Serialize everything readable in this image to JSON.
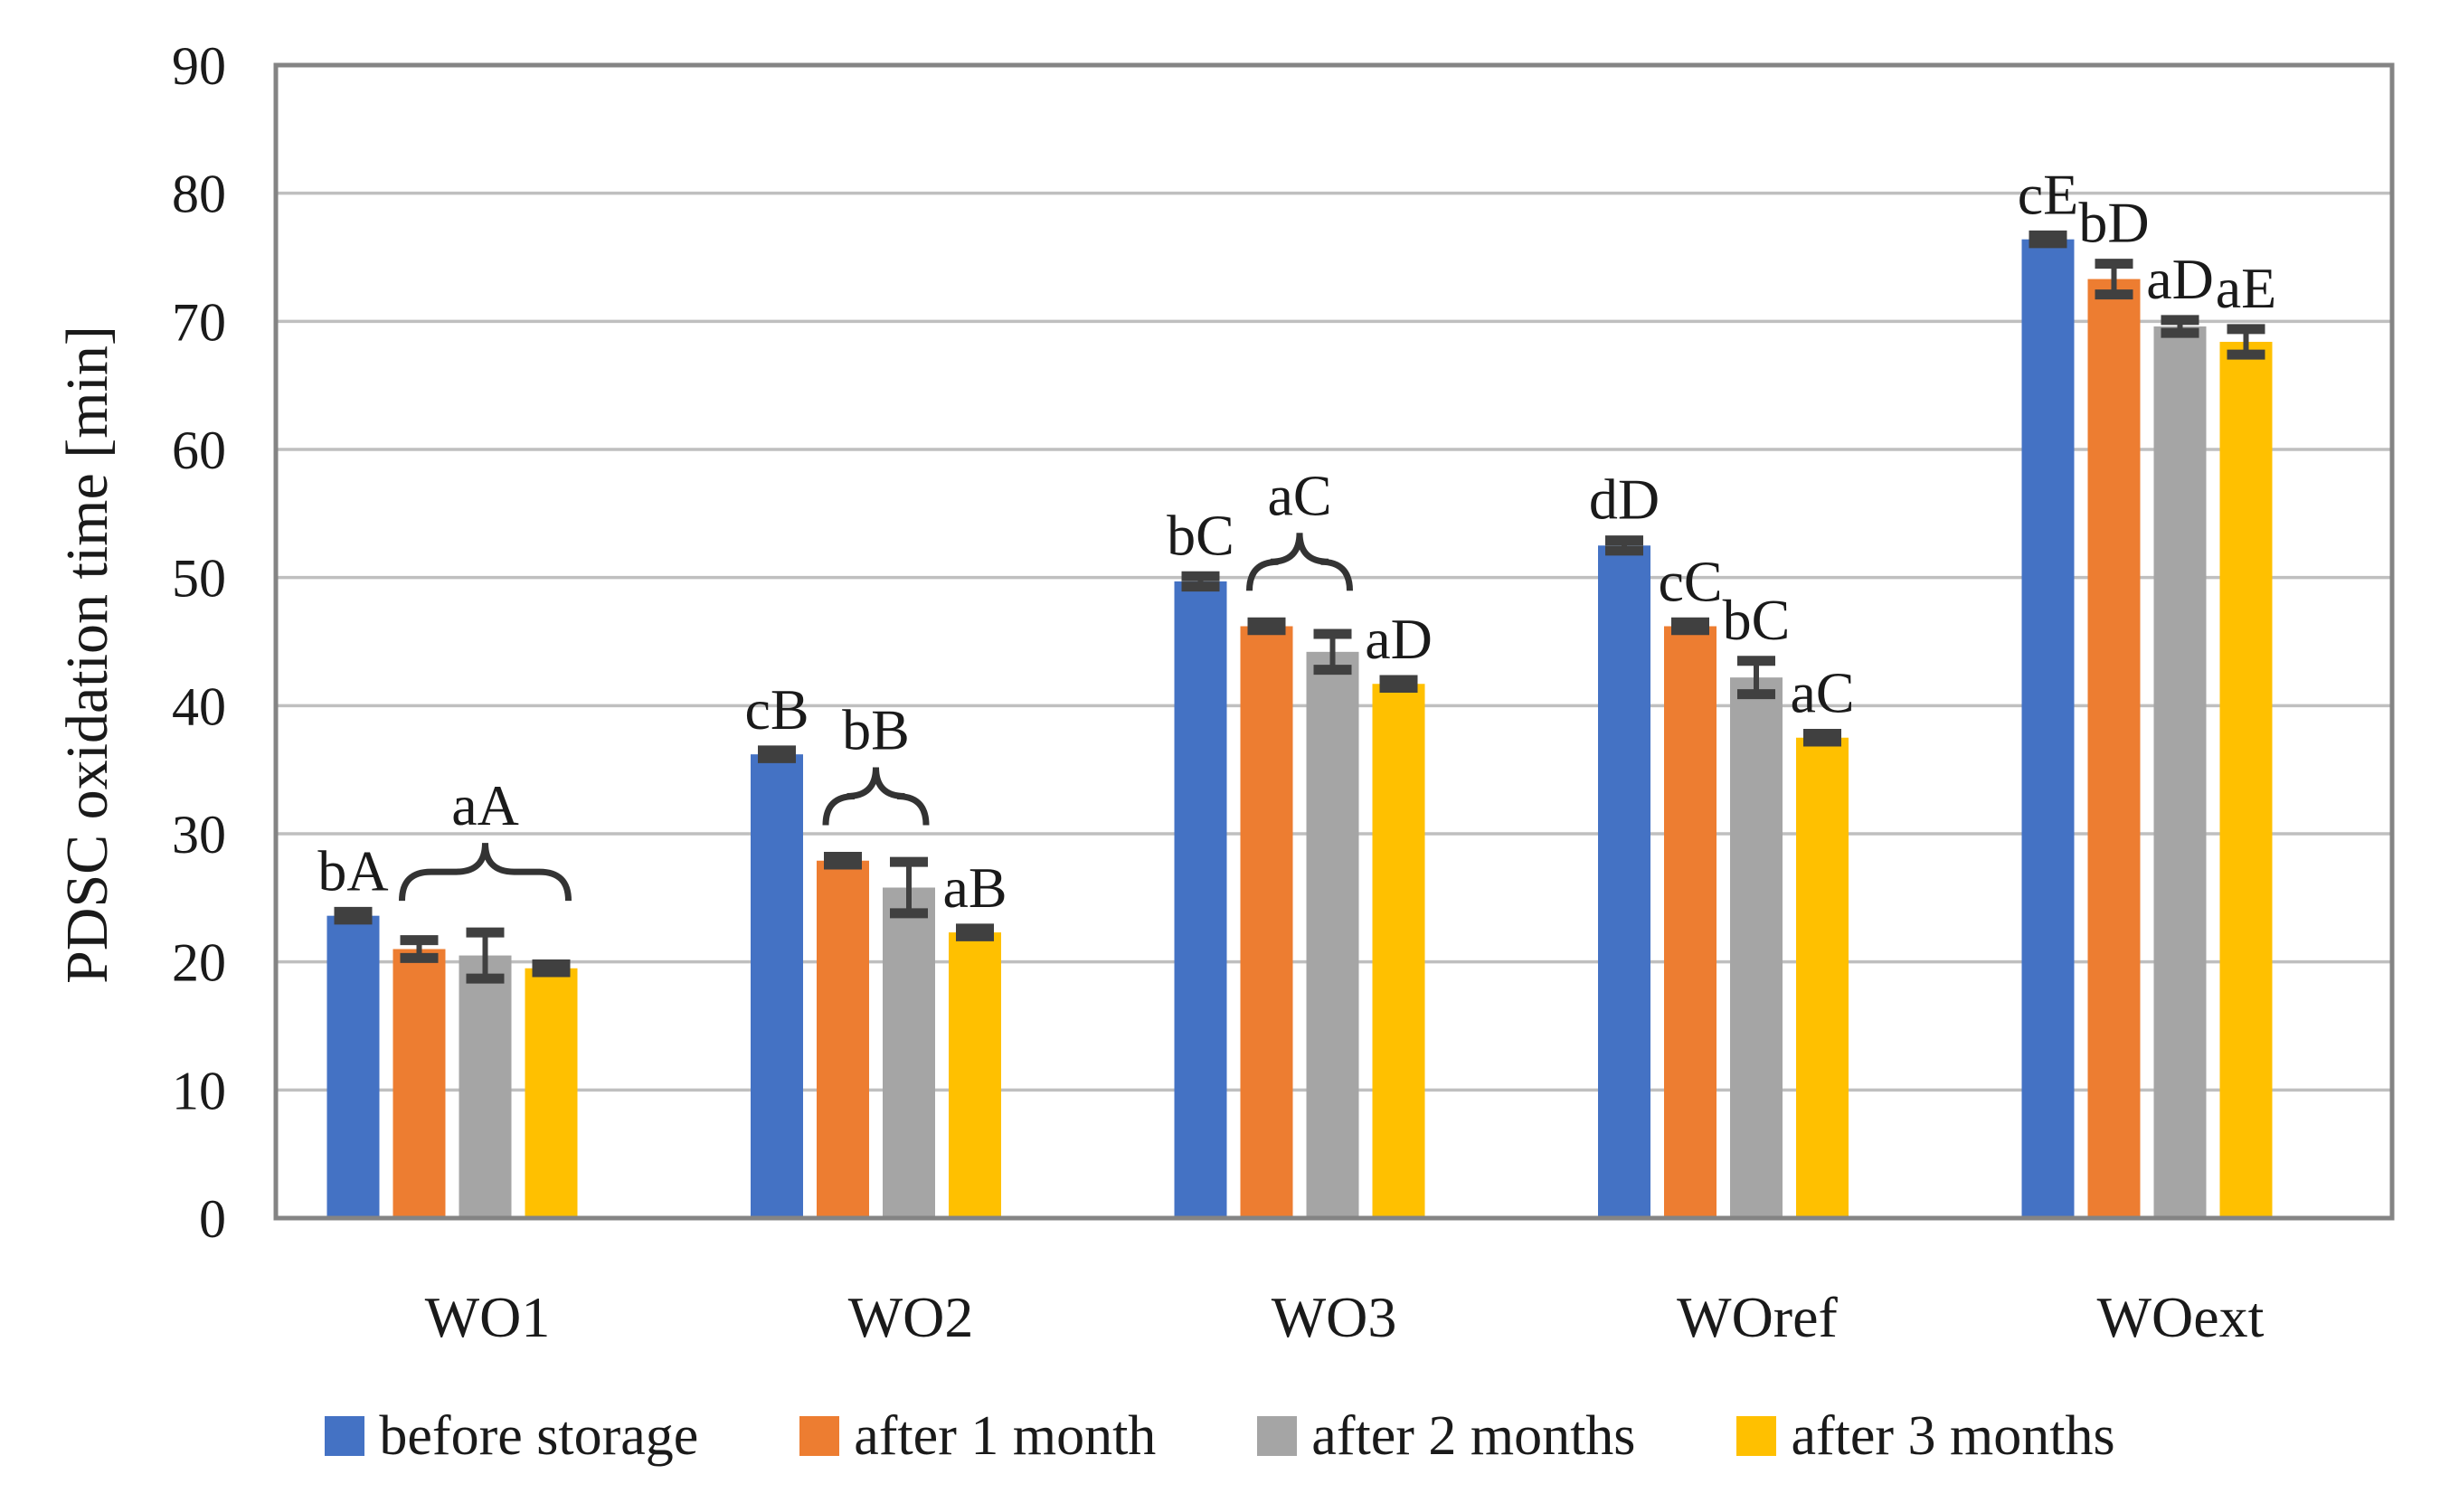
{
  "chart_data": {
    "type": "bar",
    "title": "",
    "xlabel": "",
    "ylabel": "PDSC oxidation time [min]",
    "ylim": [
      0,
      90
    ],
    "ytick_step": 10,
    "grid": true,
    "legend_position": "bottom",
    "categories": [
      "WO1",
      "WO2",
      "WO3",
      "WOref",
      "WOext"
    ],
    "series": [
      {
        "name": "before storage",
        "color": "#4472C4",
        "values": [
          23.6,
          36.2,
          49.7,
          52.5,
          76.4
        ],
        "errors": [
          0.3,
          0.3,
          0.4,
          0.4,
          0.3
        ]
      },
      {
        "name": "after 1 month",
        "color": "#ED7D31",
        "values": [
          21.0,
          27.9,
          46.2,
          46.2,
          73.3
        ],
        "errors": [
          0.7,
          0.3,
          0.3,
          0.3,
          1.2
        ]
      },
      {
        "name": "after 2 months",
        "color": "#A5A5A5",
        "values": [
          20.5,
          25.8,
          44.2,
          42.2,
          69.6
        ],
        "errors": [
          1.8,
          2.0,
          1.4,
          1.3,
          0.5
        ]
      },
      {
        "name": "after 3 months",
        "color": "#FFC000",
        "values": [
          19.5,
          22.3,
          41.7,
          37.5,
          68.4
        ],
        "errors": [
          0.3,
          0.3,
          0.3,
          0.3,
          1.0
        ]
      }
    ],
    "bar_labels": [
      [
        "bA",
        null,
        null,
        null
      ],
      [
        "cB",
        null,
        null,
        "aB"
      ],
      [
        "bC",
        null,
        null,
        "aD"
      ],
      [
        "dD",
        "cC",
        "bC",
        "aC"
      ],
      [
        "cE",
        "bD",
        "aD",
        "aE"
      ]
    ],
    "braces": [
      {
        "category_index": 0,
        "from_series": 1,
        "to_series": 3,
        "label": "aA"
      },
      {
        "category_index": 1,
        "from_series": 1,
        "to_series": 2,
        "label": "bB"
      },
      {
        "category_index": 2,
        "from_series": 1,
        "to_series": 2,
        "label": "aC"
      }
    ],
    "colors": {
      "error_bar": "#404040",
      "brace": "#333333",
      "gridline": "#BFBFBF",
      "border": "#848484",
      "text": "#1a1a1a"
    }
  }
}
